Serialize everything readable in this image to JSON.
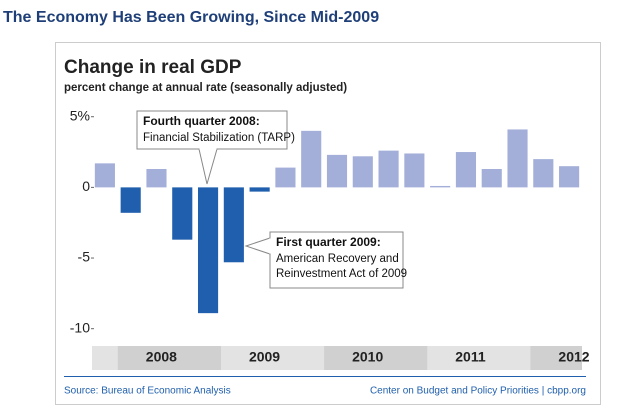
{
  "header": {
    "title": "The Economy Has Been Growing, Since Mid-2009"
  },
  "chart_data": {
    "type": "bar",
    "title": "Change in real GDP",
    "subtitle": "percent change at annual rate (seasonally adjusted)",
    "categories": [
      null,
      null,
      null,
      null,
      null,
      null,
      null,
      null,
      null,
      null,
      null,
      null,
      null,
      null,
      null,
      null,
      null,
      null,
      null
    ],
    "values": [
      1.7,
      -1.8,
      1.3,
      -3.7,
      -8.9,
      -5.3,
      -0.3,
      1.4,
      4.0,
      2.3,
      2.2,
      2.6,
      2.4,
      0.1,
      2.5,
      1.3,
      4.1,
      2.0,
      1.5
    ],
    "colors": [
      "#a3afd9",
      "#1f5fad",
      "#a3afd9",
      "#1f5fad",
      "#1f5fad",
      "#1f5fad",
      "#1f5fad",
      "#a3afd9",
      "#a3afd9",
      "#a3afd9",
      "#a3afd9",
      "#a3afd9",
      "#a3afd9",
      "#a3afd9",
      "#a3afd9",
      "#a3afd9",
      "#a3afd9",
      "#a3afd9",
      "#a3afd9"
    ],
    "year_groups": [
      {
        "label": "2008",
        "start": 1,
        "end": 4
      },
      {
        "label": "2009",
        "start": 5,
        "end": 8
      },
      {
        "label": "2010",
        "start": 9,
        "end": 12
      },
      {
        "label": "2011",
        "start": 13,
        "end": 16
      },
      {
        "label": "2012",
        "start": 17,
        "end": 18
      }
    ],
    "ylim": [
      -10.8,
      5.9
    ],
    "yticks": [
      {
        "value": 5,
        "label": "5%"
      },
      0,
      -5,
      -10
    ],
    "annotations": [
      {
        "title": "Fourth quarter 2008:",
        "lines": [
          "Financial Stabilization (TARP)"
        ],
        "bar": 4
      },
      {
        "title": "First quarter 2009:",
        "lines": [
          "American Recovery and",
          "Reinvestment Act of 2009"
        ],
        "bar": 5
      }
    ],
    "source": "Source: Bureau of Economic Analysis",
    "credit": "Center on Budget and Policy Priorities | cbpp.org"
  }
}
